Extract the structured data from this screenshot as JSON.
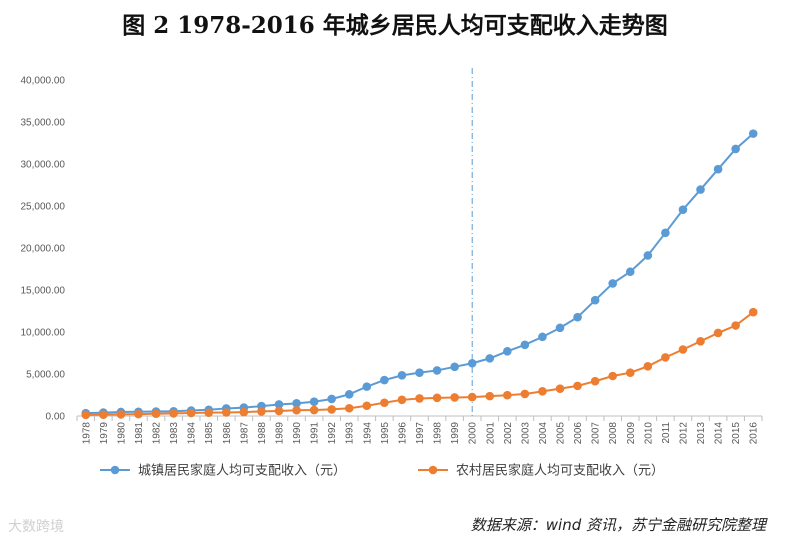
{
  "title": "图 2 1978-2016 年城乡居民人均可支配收入走势图",
  "source": "数据来源：wind 资讯，苏宁金融研究院整理",
  "watermark": "大数跨境",
  "colors": {
    "urban": "#5B9BD5",
    "rural": "#ED7D31",
    "reference_line": "#5B9BD5",
    "axis": "#BFBFBF"
  },
  "chart_data": {
    "type": "line",
    "title": "图 2 1978-2016 年城乡居民人均可支配收入走势图",
    "xlabel": "",
    "ylabel": "",
    "ylim": [
      0,
      40000
    ],
    "y_ticks": [
      "0.00",
      "5,000.00",
      "10,000.00",
      "15,000.00",
      "20,000.00",
      "25,000.00",
      "30,000.00",
      "35,000.00",
      "40,000.00"
    ],
    "x": [
      "1978",
      "1979",
      "1980",
      "1981",
      "1982",
      "1983",
      "1984",
      "1985",
      "1986",
      "1987",
      "1988",
      "1989",
      "1990",
      "1991",
      "1992",
      "1993",
      "1994",
      "1995",
      "1996",
      "1997",
      "1998",
      "1999",
      "2000",
      "2001",
      "2002",
      "2003",
      "2004",
      "2005",
      "2006",
      "2007",
      "2008",
      "2009",
      "2010",
      "2011",
      "2012",
      "2013",
      "2014",
      "2015",
      "2016"
    ],
    "reference_line_x": "2000",
    "grid": false,
    "legend_position": "bottom",
    "series": [
      {
        "name": "城镇居民家庭人均可支配收入（元）",
        "color": "#5B9BD5",
        "values": [
          343,
          405,
          478,
          500,
          535,
          565,
          652,
          739,
          900,
          1002,
          1180,
          1374,
          1510,
          1701,
          2027,
          2577,
          3496,
          4283,
          4839,
          5160,
          5425,
          5854,
          6280,
          6860,
          7703,
          8472,
          9422,
          10493,
          11759,
          13786,
          15781,
          17175,
          19109,
          21810,
          24565,
          26955,
          29381,
          31790,
          33616
        ]
      },
      {
        "name": "农村居民家庭人均可支配收入（元）",
        "color": "#ED7D31",
        "values": [
          134,
          160,
          191,
          223,
          270,
          310,
          355,
          398,
          424,
          463,
          545,
          602,
          686,
          709,
          784,
          922,
          1221,
          1578,
          1926,
          2090,
          2162,
          2210,
          2253,
          2366,
          2476,
          2622,
          2936,
          3255,
          3587,
          4140,
          4761,
          5153,
          5919,
          6977,
          7917,
          8896,
          9892,
          10772,
          12363
        ]
      }
    ]
  }
}
